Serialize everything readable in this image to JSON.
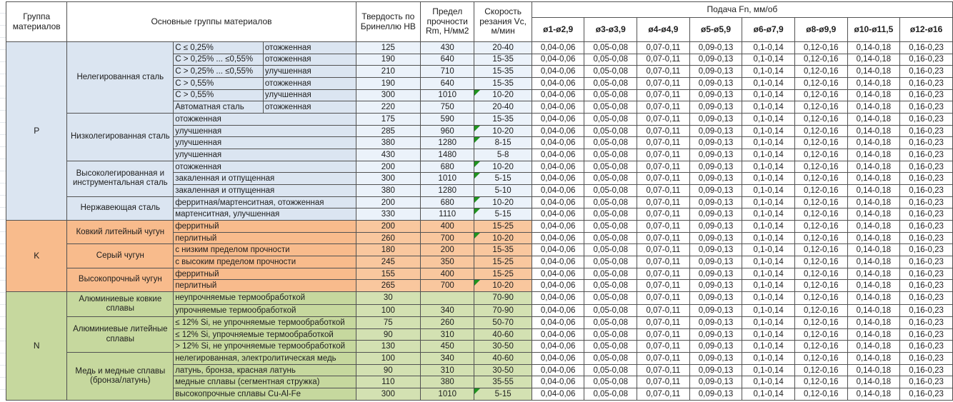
{
  "table": {
    "headers": {
      "group": "Группа материалов",
      "main_groups": "Основные группы материалов",
      "hardness": "Твердость по Бринеллю HB",
      "strength": "Предел прочности Rm, Н/мм2",
      "speed": "Скорость резания Vc, м/мин",
      "feed": "Подача Fn, мм/об",
      "feed_columns": [
        "ø1-ø2,9",
        "ø3-ø3,9",
        "ø4-ø4,9",
        "ø5-ø5,9",
        "ø6-ø7,9",
        "ø8-ø9,9",
        "ø10-ø11,5",
        "ø12-ø16"
      ]
    },
    "feed_values": [
      "0,04-0,06",
      "0,05-0,08",
      "0,07-0,11",
      "0,09-0,13",
      "0,1-0,14",
      "0,12-0,16",
      "0,14-0,18",
      "0,16-0,23"
    ],
    "marker_color": "#1f941f",
    "border_color": "#525252",
    "groups": [
      {
        "letter": "P",
        "name_color": "#dbe5f1",
        "value_color": "#ebf2fa",
        "families": [
          {
            "name": "Нелегированная сталь",
            "rows": [
              {
                "sub1": "C ≤ 0,25%",
                "sub2": "отожженная",
                "hb": "125",
                "rm": "430",
                "vc": "20-40",
                "marker": false
              },
              {
                "sub1": "C > 0,25% ... ≤0,55%",
                "sub2": "отожженная",
                "hb": "190",
                "rm": "640",
                "vc": "15-35",
                "marker": false
              },
              {
                "sub1": "C > 0,25% ... ≤0,55%",
                "sub2": "улучшенная",
                "hb": "210",
                "rm": "710",
                "vc": "15-35",
                "marker": false
              },
              {
                "sub1": "C > 0,55%",
                "sub2": "отожженная",
                "hb": "190",
                "rm": "640",
                "vc": "15-35",
                "marker": false
              },
              {
                "sub1": "C > 0,55%",
                "sub2": "улучшенная",
                "hb": "300",
                "rm": "1010",
                "vc": "10-20",
                "marker": true
              },
              {
                "sub1": "Автоматная сталь",
                "sub2": "отожженная",
                "hb": "220",
                "rm": "750",
                "vc": "20-40",
                "marker": false
              }
            ]
          },
          {
            "name": "Низколегированная сталь",
            "rows": [
              {
                "sub": "отожженная",
                "hb": "175",
                "rm": "590",
                "vc": "15-35",
                "marker": false
              },
              {
                "sub": "улучшенная",
                "hb": "285",
                "rm": "960",
                "vc": "10-20",
                "marker": true
              },
              {
                "sub": "улучшенная",
                "hb": "380",
                "rm": "1280",
                "vc": "8-15",
                "marker": true
              },
              {
                "sub": "улучшенная",
                "hb": "430",
                "rm": "1480",
                "vc": "5-8",
                "marker": false
              }
            ]
          },
          {
            "name": "Высоколегированная и инструментальная сталь",
            "rows": [
              {
                "sub": "отожженная",
                "hb": "200",
                "rm": "680",
                "vc": "10-20",
                "marker": true
              },
              {
                "sub": "закаленная и отпущенная",
                "hb": "300",
                "rm": "1010",
                "vc": "5-15",
                "marker": true
              },
              {
                "sub": "закаленная и отпущенная",
                "hb": "380",
                "rm": "1280",
                "vc": "5-10",
                "marker": false
              }
            ]
          },
          {
            "name": "Нержавеющая сталь",
            "rows": [
              {
                "sub": "ферритная/мартенситная, отожженная",
                "hb": "200",
                "rm": "680",
                "vc": "10-20",
                "marker": true
              },
              {
                "sub": "мартенситная, улучшенная",
                "hb": "330",
                "rm": "1110",
                "vc": "5-15",
                "marker": true
              }
            ]
          }
        ]
      },
      {
        "letter": "K",
        "name_color": "#f8bb8c",
        "value_color": "#f9c79e",
        "families": [
          {
            "name": "Ковкий литейный чугун",
            "rows": [
              {
                "sub": "ферритный",
                "hb": "200",
                "rm": "400",
                "vc": "15-25",
                "marker": false
              },
              {
                "sub": "перлитный",
                "hb": "260",
                "rm": "700",
                "vc": "10-20",
                "marker": true
              }
            ]
          },
          {
            "name": "Серый чугун",
            "rows": [
              {
                "sub": "с низким пределом прочности",
                "hb": "180",
                "rm": "200",
                "vc": "15-35",
                "marker": false
              },
              {
                "sub": "с высоким пределом прочности",
                "hb": "245",
                "rm": "350",
                "vc": "15-25",
                "marker": false
              }
            ]
          },
          {
            "name": "Высокопрочный чугун",
            "rows": [
              {
                "sub": "ферритный",
                "hb": "155",
                "rm": "400",
                "vc": "15-25",
                "marker": false
              },
              {
                "sub": "перлитный",
                "hb": "265",
                "rm": "700",
                "vc": "10-20",
                "marker": true
              }
            ]
          }
        ]
      },
      {
        "letter": "N",
        "name_color": "#c6d89e",
        "value_color": "#d3e1b2",
        "families": [
          {
            "name": "Алюминиевые ковкие сплавы",
            "rows": [
              {
                "sub": "неупрочняемые термообработкой",
                "hb": "30",
                "rm": "",
                "vc": "70-90",
                "marker": false
              },
              {
                "sub": "упрочняемые термообработкой",
                "hb": "100",
                "rm": "340",
                "vc": "70-90",
                "marker": false
              }
            ]
          },
          {
            "name": "Алюминиевые литейные сплавы",
            "rows": [
              {
                "sub": "≤ 12% Si, не упрочняемые термообработкой",
                "hb": "75",
                "rm": "260",
                "vc": "50-70",
                "marker": false
              },
              {
                "sub": "≤ 12% Si, упрочняемые термообработкой",
                "hb": "90",
                "rm": "310",
                "vc": "40-60",
                "marker": false
              },
              {
                "sub": "> 12% Si, не упрочняемые термообработкой",
                "hb": "130",
                "rm": "450",
                "vc": "30-50",
                "marker": false
              }
            ]
          },
          {
            "name": "Медь и медные сплавы (бронза/латунь)",
            "rows": [
              {
                "sub": "нелегированная, электролитическая медь",
                "hb": "100",
                "rm": "340",
                "vc": "40-60",
                "marker": false
              },
              {
                "sub": "латунь, бронза, красная латунь",
                "hb": "90",
                "rm": "310",
                "vc": "30-50",
                "marker": false
              },
              {
                "sub": "медные сплавы (сегментная стружка)",
                "hb": "110",
                "rm": "380",
                "vc": "35-55",
                "marker": false
              },
              {
                "sub": "высокопрочные сплавы Cu-Al-Fe",
                "hb": "300",
                "rm": "1010",
                "vc": "5-15",
                "marker": true
              }
            ]
          }
        ]
      }
    ]
  }
}
